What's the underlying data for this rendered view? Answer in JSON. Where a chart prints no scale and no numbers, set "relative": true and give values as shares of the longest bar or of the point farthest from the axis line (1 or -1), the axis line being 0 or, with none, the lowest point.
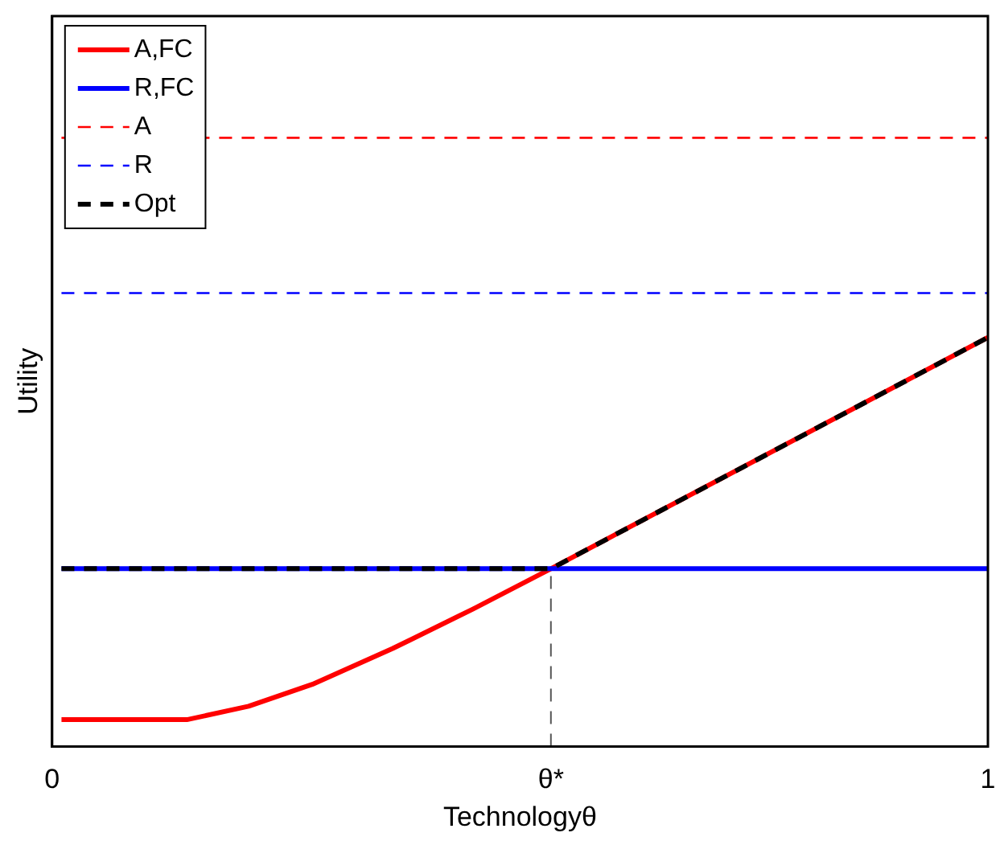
{
  "chart_data": {
    "type": "line",
    "xlabel": "Technologyθ",
    "ylabel": "Utility",
    "relative": true,
    "xlim": [
      0,
      1
    ],
    "xticks": [
      0,
      {
        "value": 0.533,
        "label": "θ*"
      },
      1
    ],
    "legend": "top left",
    "grid": false,
    "marker": "none",
    "series": [
      {
        "name": "A,FC",
        "color": "#ff0000",
        "line_style": "solid",
        "x": [
          0.01,
          0.144,
          0.21,
          0.278,
          0.364,
          0.45,
          0.533,
          1
        ],
        "values": [
          0.044,
          0.044,
          0.066,
          0.102,
          0.161,
          0.226,
          0.292,
          0.672
        ]
      },
      {
        "name": "R,FC",
        "color": "#0000ff",
        "line_style": "solid",
        "x": [
          0.01,
          1
        ],
        "values": [
          0.292,
          0.292
        ]
      },
      {
        "name": "A",
        "color": "#ff0000",
        "line_style": "dashed",
        "x": [
          0.01,
          1
        ],
        "values": [
          1,
          1
        ]
      },
      {
        "name": "R",
        "color": "#0000ff",
        "line_style": "dashed",
        "x": [
          0.01,
          1
        ],
        "values": [
          0.745,
          0.745
        ]
      },
      {
        "name": "Opt",
        "color": "#000000",
        "line_style": "dashed",
        "x": [
          0.01,
          0.533,
          1
        ],
        "values": [
          0.292,
          0.292,
          0.672
        ]
      },
      {
        "color": "#555555",
        "line_style": "dashed",
        "x": [
          0.533,
          0.533
        ],
        "values": [
          0,
          0.292
        ]
      }
    ]
  }
}
